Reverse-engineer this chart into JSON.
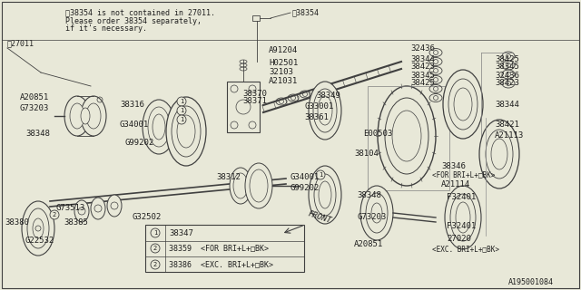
{
  "bg_color": "#e8e8d8",
  "line_color": "#404040",
  "text_color": "#202020",
  "border_color": "#606060",
  "diagram_id": "A195001084",
  "figsize": [
    6.4,
    3.2
  ],
  "dpi": 100,
  "note1": "‸38354 is not contained in 27011.",
  "note2": "Please order 38354 separately,",
  "note3": "if it's necessary.",
  "note_ref": "‸27011",
  "star38354_label": "‸38354"
}
